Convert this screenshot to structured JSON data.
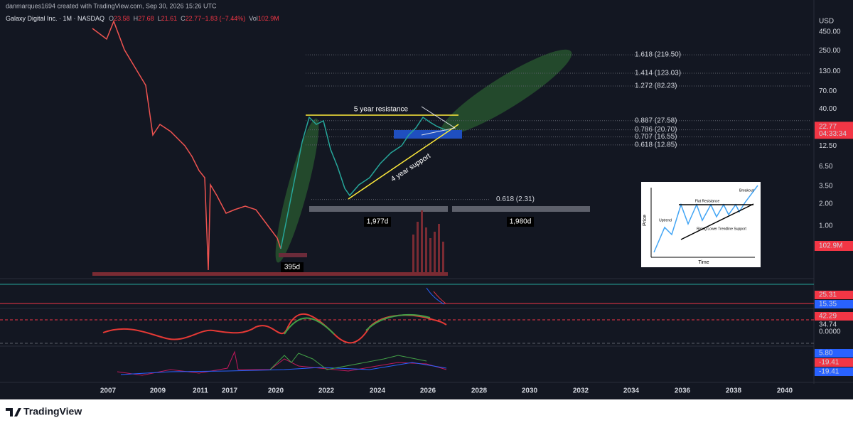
{
  "header": {
    "credit": "danmarques1694 created with TradingView.com, Sep 30, 2026 15:26 UTC",
    "symbol": "Galaxy Digital Inc. · 1M · NASDAQ",
    "ohlc": [
      "O",
      "23.58",
      "H",
      "27.68",
      "L",
      "21.61",
      "C",
      "22.77",
      "−1.83 (−7.44%)",
      "Vol",
      "102.9M"
    ]
  },
  "price_axis": {
    "currency": "USD",
    "labels": [
      {
        "value": 450,
        "label": "450.00"
      },
      {
        "value": 250,
        "label": "250.00"
      },
      {
        "value": 130,
        "label": "130.00"
      },
      {
        "value": 70,
        "label": "70.00"
      },
      {
        "value": 40,
        "label": "40.00"
      },
      {
        "value": 12.5,
        "label": "12.50"
      },
      {
        "value": 6.5,
        "label": "6.50"
      },
      {
        "value": 3.5,
        "label": "3.50"
      },
      {
        "value": 2,
        "label": "2.00"
      },
      {
        "value": 1,
        "label": "1.00"
      }
    ],
    "last_price": 22.77,
    "countdown": "04:33:34",
    "volume": "102.9M"
  },
  "fib_levels": [
    {
      "value": 219.5,
      "label": "1.618 (219.50)",
      "color": "#9fb4e8"
    },
    {
      "value": 123.03,
      "label": "1.414 (123.03)",
      "color": "#f0908a"
    },
    {
      "value": 82.23,
      "label": "1.272 (82.23)",
      "color": "#a5d6a7"
    },
    {
      "value": 27.58,
      "label": "0.887 (27.58)",
      "color": "#f0908a"
    },
    {
      "value": 20.7,
      "label": "0.786 (20.70)",
      "color": "#64b5f6"
    },
    {
      "value": 16.55,
      "label": "0.707 (16.55)",
      "color": "#ffb74d"
    },
    {
      "value": 12.85,
      "label": "0.618 (12.85)",
      "color": "#e0e3eb"
    },
    {
      "value": 2.31,
      "label": "0.618 (2.31)",
      "color": "#9fb4e8"
    }
  ],
  "annotations": {
    "resistance": "5 year resistance",
    "support": "4 year support",
    "range1": "1,977d",
    "range2": "1,980d",
    "range3": "395d"
  },
  "indicator_labels": [
    {
      "label": "25.31",
      "color": "#f23645"
    },
    {
      "label": "15.35",
      "color": "#2962ff"
    },
    {
      "label": "42.29",
      "color": "#f23645"
    },
    {
      "label": "34.74",
      "color": "#131722"
    },
    {
      "label": "0.0000",
      "color": "#131722"
    },
    {
      "label": "5.80",
      "color": "#2962ff"
    },
    {
      "label": "-19.41",
      "color": "#f23645"
    },
    {
      "label": "-19.41",
      "color": "#2962ff"
    }
  ],
  "time_axis": [
    "2007",
    "2009",
    "2011",
    "2017",
    "2020",
    "2022",
    "2024",
    "2026",
    "2028",
    "2030",
    "2032",
    "2034",
    "2036",
    "2038",
    "2040"
  ],
  "inset": {
    "y_label": "Price",
    "x_label": "Time",
    "uptrend": "Uptrend",
    "resistance": "Flat Resistance",
    "breakout": "Breakout",
    "support": "Rising Lower Trendline Support"
  },
  "footer": {
    "brand": "TradingView"
  }
}
